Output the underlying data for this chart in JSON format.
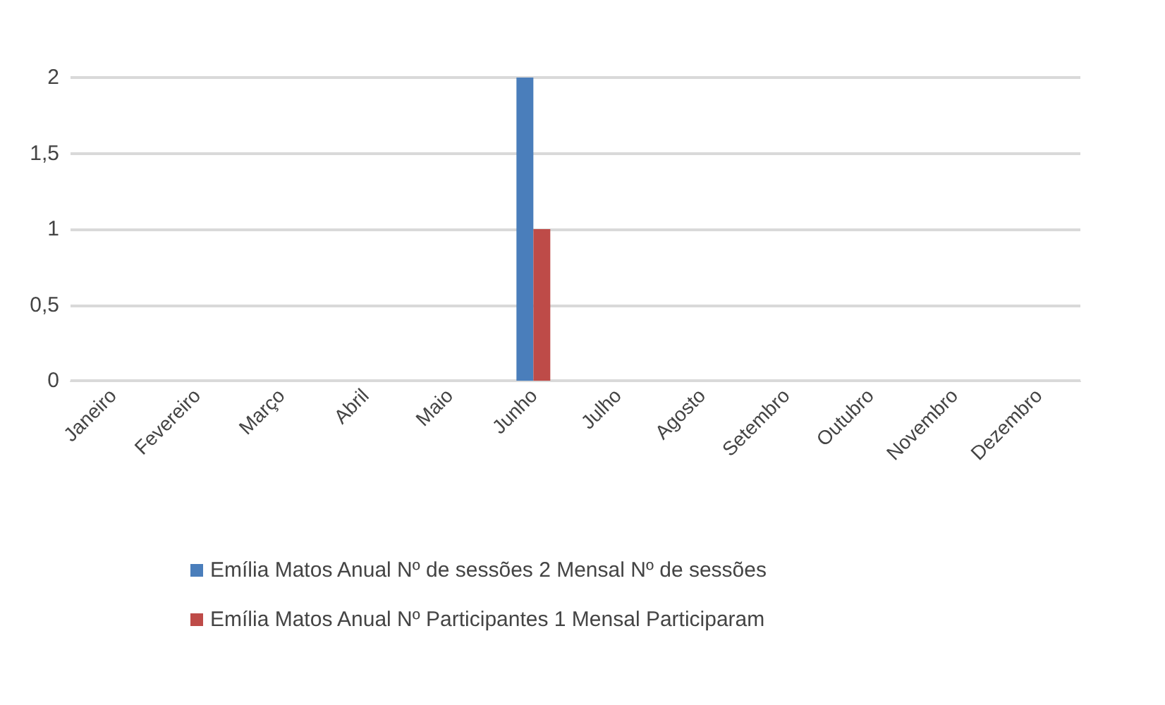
{
  "chart_data": {
    "type": "bar",
    "categories": [
      "Janeiro",
      "Fevereiro",
      "Março",
      "Abril",
      "Maio",
      "Junho",
      "Julho",
      "Agosto",
      "Setembro",
      "Outubro",
      "Novembro",
      "Dezembro"
    ],
    "series": [
      {
        "name": "Emília Matos Anual Nº de sessões 2 Mensal Nº de sessões",
        "color": "#4a7ebb",
        "values": [
          0,
          0,
          0,
          0,
          0,
          2,
          0,
          0,
          0,
          0,
          0,
          0
        ]
      },
      {
        "name": "Emília Matos Anual Nº Participantes 1 Mensal Participaram",
        "color": "#be4b48",
        "values": [
          0,
          0,
          0,
          0,
          0,
          1,
          0,
          0,
          0,
          0,
          0,
          0
        ]
      }
    ],
    "ylim": [
      0,
      2
    ],
    "yticks": [
      0,
      {
        "value": 0.5,
        "label": "0,5"
      },
      1,
      {
        "value": 1.5,
        "label": "1,5"
      },
      2
    ],
    "grid": "y",
    "legend": "bottom"
  }
}
